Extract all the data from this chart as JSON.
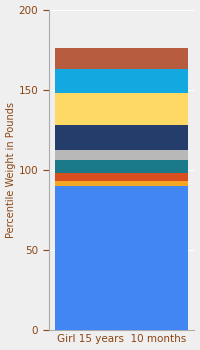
{
  "categories": [
    "Girl 15 years  10 months"
  ],
  "segments": [
    {
      "label": "base_blue",
      "value": 90,
      "color": "#4286f4"
    },
    {
      "label": "orange_thin",
      "value": 3,
      "color": "#f5a623"
    },
    {
      "label": "red_orange",
      "value": 5,
      "color": "#d94e1f"
    },
    {
      "label": "teal",
      "value": 8,
      "color": "#1a7a8a"
    },
    {
      "label": "gray",
      "value": 6,
      "color": "#b8b8b8"
    },
    {
      "label": "dark_navy",
      "value": 16,
      "color": "#253d6b"
    },
    {
      "label": "yellow",
      "value": 20,
      "color": "#ffd966"
    },
    {
      "label": "sky_blue",
      "value": 15,
      "color": "#14a8e0"
    },
    {
      "label": "brown_rust",
      "value": 13,
      "color": "#b85c40"
    }
  ],
  "ylabel": "Percentile Weight in Pounds",
  "ylim": [
    0,
    200
  ],
  "yticks": [
    0,
    50,
    100,
    150,
    200
  ],
  "bg_color": "#efefef",
  "ylabel_fontsize": 7,
  "tick_fontsize": 7.5,
  "xlabel_fontsize": 7.5,
  "xlabel_color": "#8B4513",
  "ylabel_color": "#8B4513",
  "tick_color": "#8B4513",
  "bar_width": 0.35,
  "grid_color": "#ffffff",
  "spine_color": "#aaaaaa"
}
